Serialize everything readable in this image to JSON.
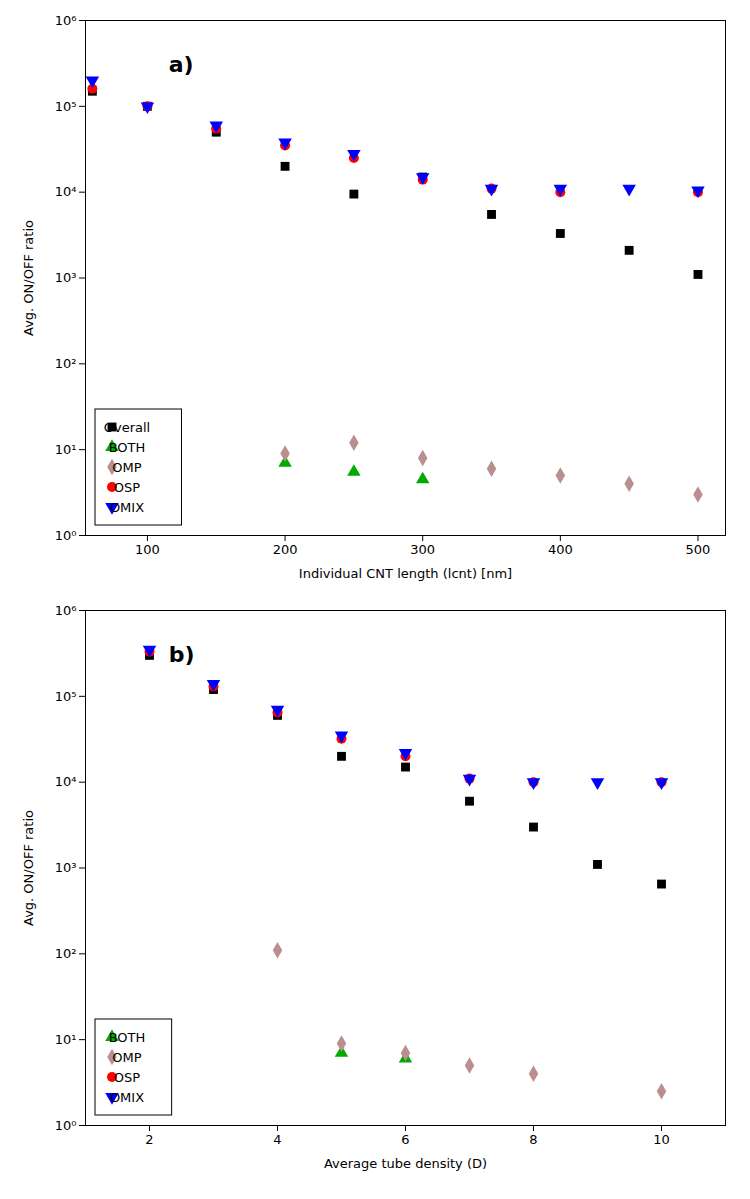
{
  "chart_data": [
    {
      "type": "scatter",
      "title": "a)",
      "xlabel": "Individual CNT length (lcnt) [nm]",
      "ylabel": "Avg. ON/OFF ratio",
      "log": "y",
      "grid": false,
      "legend": "lower left",
      "xlim": [
        55,
        520
      ],
      "ylim": [
        1,
        1000000.0
      ],
      "xticks": [
        100,
        200,
        300,
        400,
        500
      ],
      "yticks": [
        {
          "value": 1,
          "label": "10⁰"
        },
        {
          "value": 10,
          "label": "10¹"
        },
        {
          "value": 100,
          "label": "10²"
        },
        {
          "value": 1000,
          "label": "10³"
        },
        {
          "value": 10000,
          "label": "10⁴"
        },
        {
          "value": 100000,
          "label": "10⁵"
        },
        {
          "value": 1000000,
          "label": "10⁶"
        }
      ],
      "series": [
        {
          "name": "Overall",
          "color": "#000000",
          "marker": "square",
          "x": [
            60,
            100,
            150,
            200,
            250,
            300,
            350,
            400,
            450,
            500
          ],
          "values": [
            150000.0,
            100000.0,
            50000.0,
            20000.0,
            9500,
            15000.0,
            5500,
            3300,
            2100,
            1100
          ]
        },
        {
          "name": "BOTH",
          "color": "#00aa00",
          "marker": "triangle-up",
          "x": [
            200,
            250,
            300
          ],
          "values": [
            7,
            5.5,
            4.5
          ]
        },
        {
          "name": "OMP",
          "color": "#bc8f8f",
          "marker": "diamond",
          "x": [
            200,
            250,
            300,
            350,
            400,
            450,
            500
          ],
          "values": [
            9,
            12,
            8,
            6,
            5,
            4,
            3
          ]
        },
        {
          "name": "OSP",
          "color": "#ff0000",
          "marker": "circle",
          "x": [
            60,
            100,
            150,
            200,
            250,
            300,
            350,
            400,
            500
          ],
          "values": [
            160000.0,
            100000.0,
            55000.0,
            35000.0,
            25000.0,
            14000.0,
            11000.0,
            10000.0,
            10000.0
          ]
        },
        {
          "name": "OMIX",
          "color": "#0000ff",
          "marker": "triangle-down",
          "x": [
            60,
            100,
            150,
            200,
            250,
            300,
            350,
            400,
            450,
            500
          ],
          "values": [
            200000.0,
            100000.0,
            60000.0,
            38000.0,
            28000.0,
            15000.0,
            11000.0,
            11000.0,
            11000.0,
            10500.0
          ]
        }
      ]
    },
    {
      "type": "scatter",
      "title": "b)",
      "xlabel": "Average tube density (D)",
      "ylabel": "Avg. ON/OFF ratio",
      "log": "y",
      "grid": false,
      "legend": "lower left",
      "xlim": [
        1,
        11
      ],
      "ylim": [
        1,
        1000000.0
      ],
      "xticks": [
        2,
        4,
        6,
        8,
        10
      ],
      "yticks": [
        {
          "value": 1,
          "label": "10⁰"
        },
        {
          "value": 10,
          "label": "10¹"
        },
        {
          "value": 100,
          "label": "10²"
        },
        {
          "value": 1000,
          "label": "10³"
        },
        {
          "value": 10000,
          "label": "10⁴"
        },
        {
          "value": 100000,
          "label": "10⁵"
        },
        {
          "value": 1000000,
          "label": "10⁶"
        }
      ],
      "series": [
        {
          "color": "#000000",
          "marker": "square",
          "x": [
            2,
            3,
            4,
            5,
            6,
            7,
            8,
            9,
            10
          ],
          "values": [
            300000.0,
            120000.0,
            60000.0,
            20000.0,
            15000.0,
            6000,
            3000,
            1100,
            650
          ]
        },
        {
          "name": "BOTH",
          "color": "#00aa00",
          "marker": "triangle-up",
          "x": [
            5,
            6
          ],
          "values": [
            7,
            6
          ]
        },
        {
          "name": "OMP",
          "color": "#bc8f8f",
          "marker": "diamond",
          "x": [
            4,
            5,
            6,
            7,
            8,
            10
          ],
          "values": [
            110,
            9,
            7,
            5,
            4,
            2.5
          ]
        },
        {
          "name": "OSP",
          "color": "#ff0000",
          "marker": "circle",
          "x": [
            2,
            3,
            4,
            5,
            6,
            7,
            8,
            10
          ],
          "values": [
            330000.0,
            130000.0,
            65000.0,
            32000.0,
            20000.0,
            11000.0,
            10000.0,
            10000.0
          ]
        },
        {
          "name": "OMIX",
          "color": "#0000ff",
          "marker": "triangle-down",
          "x": [
            2,
            3,
            4,
            5,
            6,
            7,
            8,
            9,
            10
          ],
          "values": [
            350000.0,
            140000.0,
            70000.0,
            35000.0,
            22000.0,
            11000.0,
            10000.0,
            10000.0,
            10000.0
          ]
        }
      ]
    }
  ]
}
